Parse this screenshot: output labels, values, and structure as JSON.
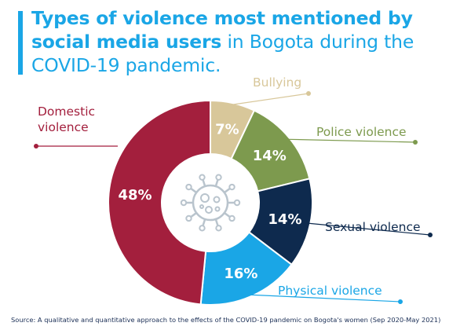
{
  "title": {
    "bold": "Types of violence most mentioned by social media users",
    "rest": " in Bogota during the COVID-19 pandemic."
  },
  "chart_data": {
    "type": "donut",
    "unit": "%",
    "slices": [
      {
        "label": "Bullying",
        "value": 7,
        "display": "7%",
        "color": "#d8c79a",
        "label_color": "#d8c79a"
      },
      {
        "label": "Police violence",
        "value": 14,
        "display": "14%",
        "color": "#7d9a4e",
        "label_color": "#7d9a4e"
      },
      {
        "label": "Sexual violence",
        "value": 14,
        "display": "14%",
        "color": "#0e2a4e",
        "label_color": "#0e2a4e"
      },
      {
        "label": "Physical violence",
        "value": 16,
        "display": "16%",
        "color": "#1aa6e6",
        "label_color": "#1aa6e6"
      },
      {
        "label": "Domestic violence",
        "value": 48,
        "display": "48%",
        "color": "#a31f3d",
        "label_color": "#a31f3d",
        "label_lines": [
          "Domestic",
          "violence"
        ]
      }
    ],
    "center_icon": "virus-icon"
  },
  "source": "Source: A qualitative and quantitative approach to the effects of the COVID-19 pandemic on Bogota's women (Sep 2020-May 2021)"
}
